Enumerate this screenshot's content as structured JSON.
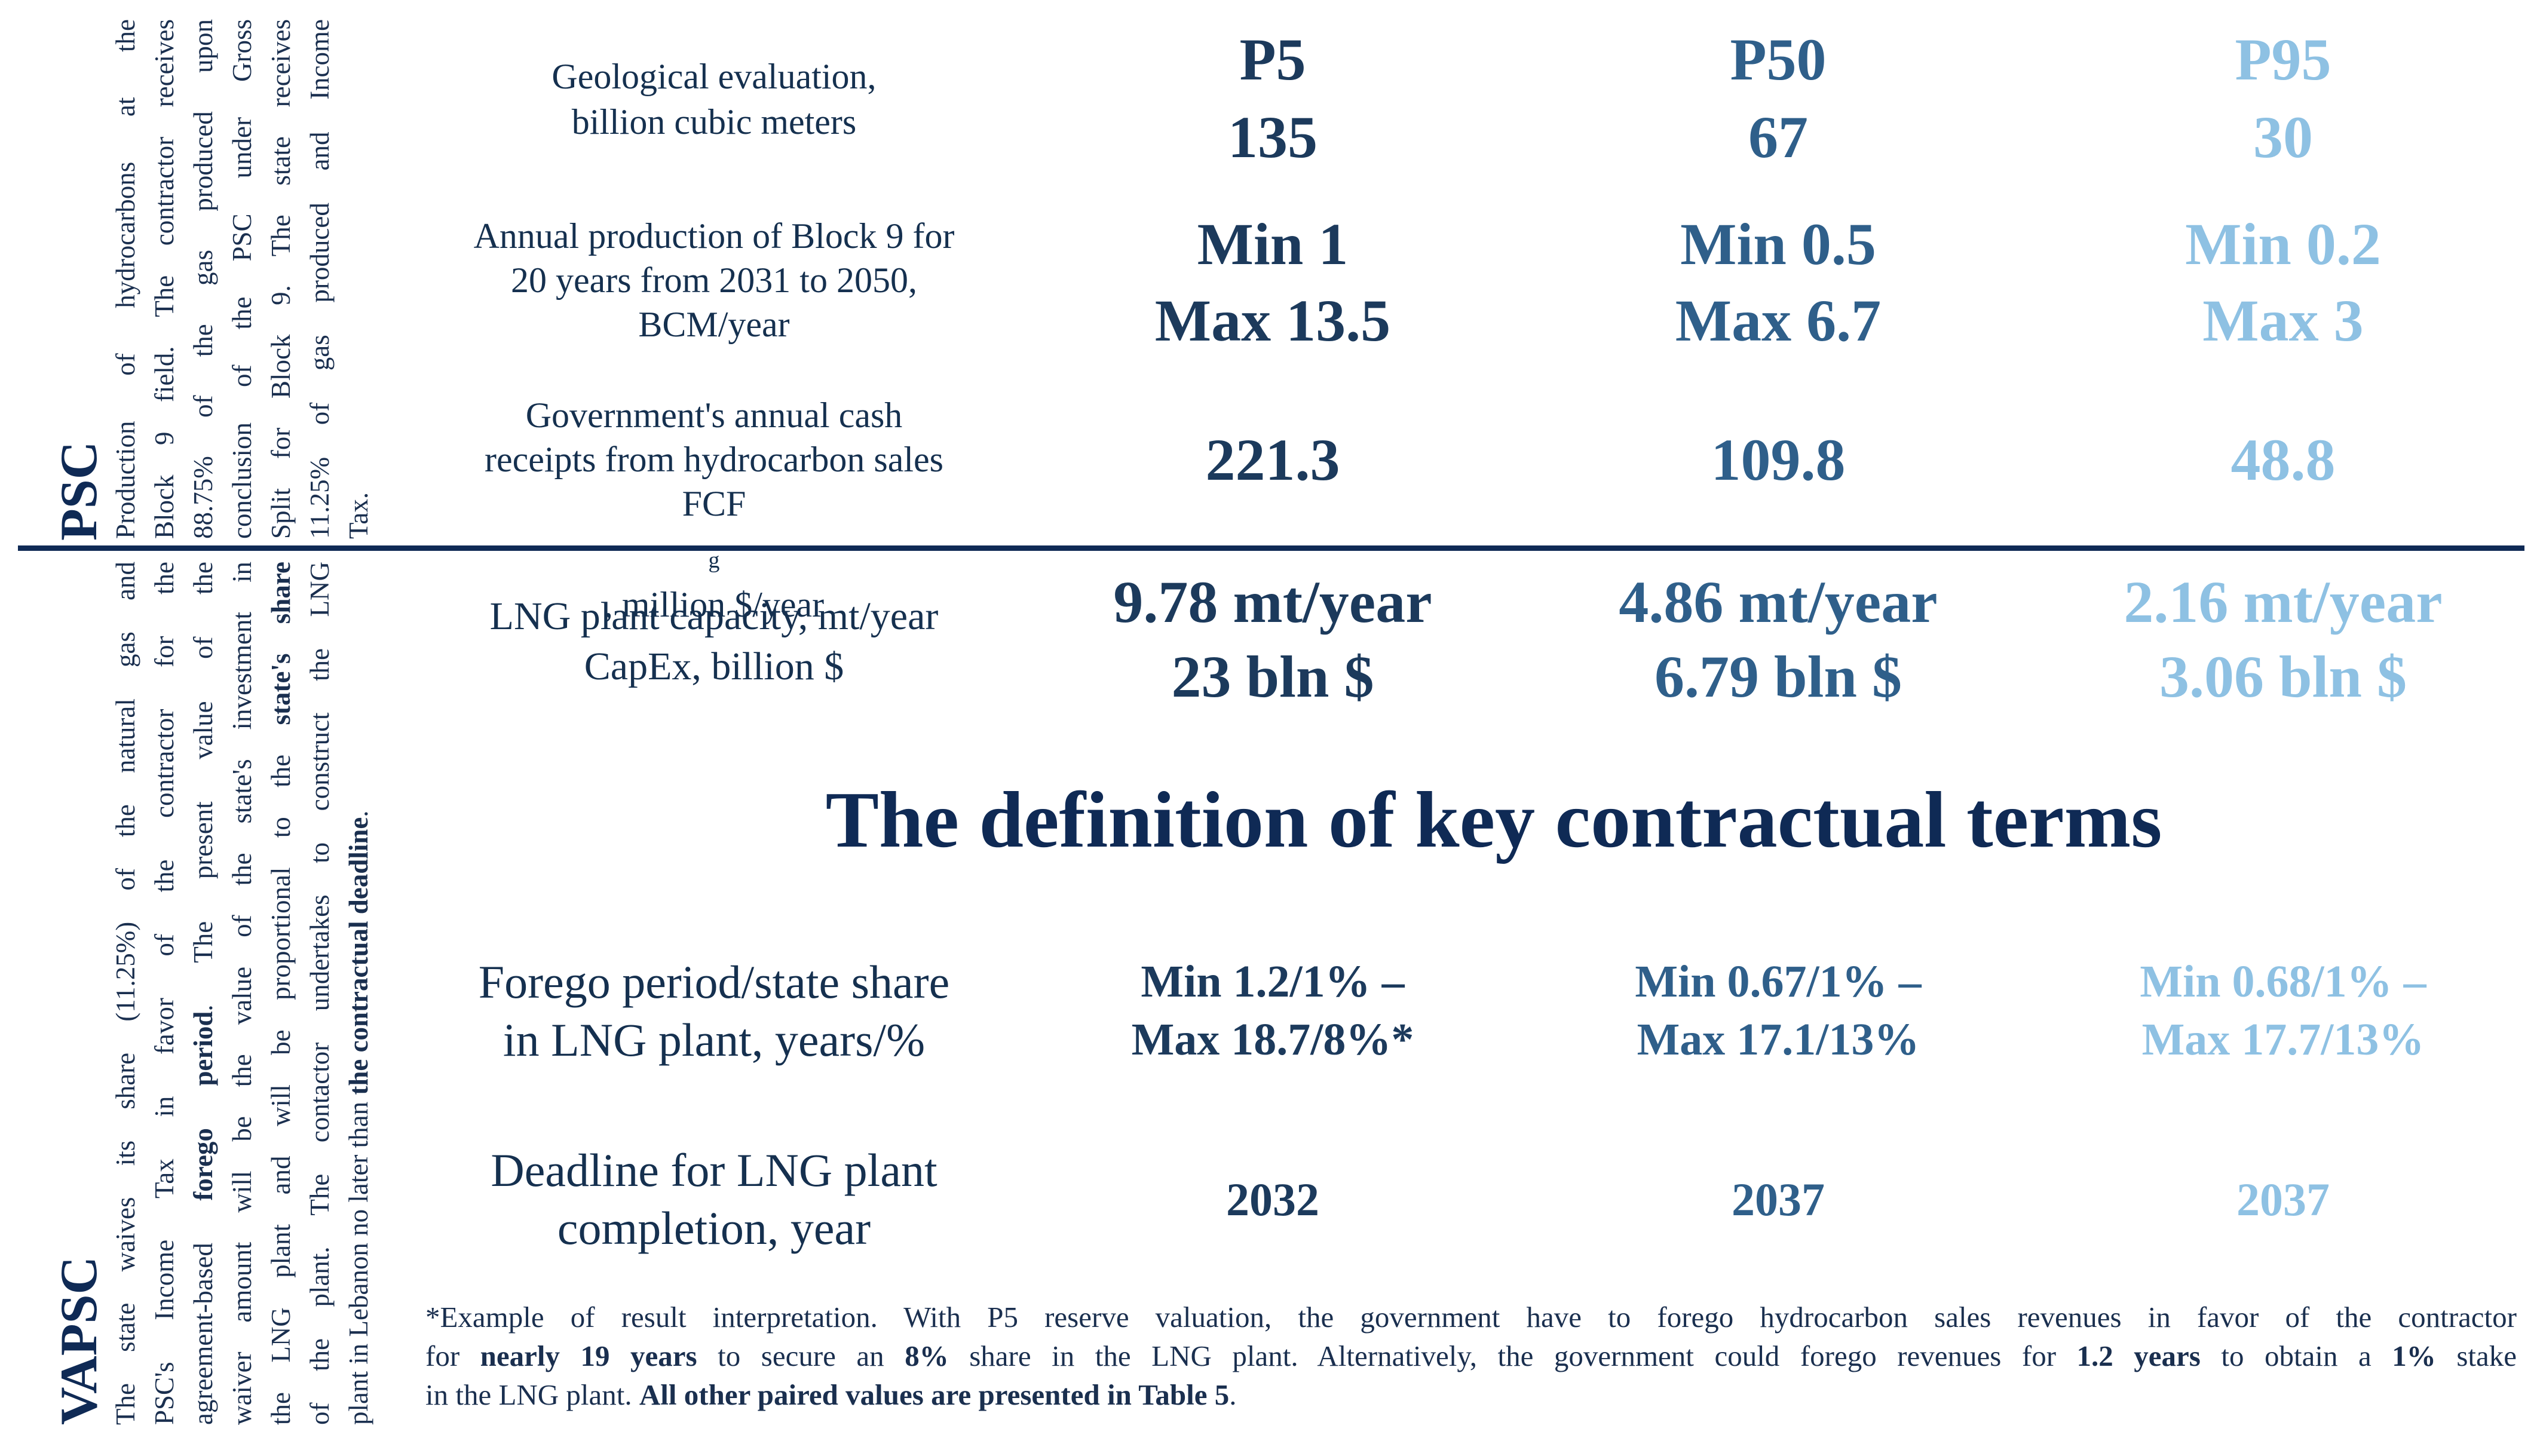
{
  "psc_label": "PSC",
  "vapsc_label": "VAPSC",
  "psc_text_lines": [
    "Production of hydrocarbons at the",
    "Block 9 field. The contractor receives",
    "88.75% of the gas produced upon",
    "conclusion of the PSC under Gross",
    "Split for Block 9. The state receives",
    "11.25% of gas produced and Income",
    "Tax."
  ],
  "vapsc_text_lines": [
    {
      "a": "The state waives its share (11.25%) of the natural gas and",
      "b": "",
      "c": ""
    },
    {
      "a": "PSC's Income Tax in favor of the contractor for the",
      "b": "",
      "c": ""
    },
    {
      "a": "agreement-based ",
      "b": "forego period",
      "c": ". The present value of the"
    },
    {
      "a": "waiver amount will be the value of the state's investment in",
      "b": "",
      "c": ""
    },
    {
      "a": "the LNG plant and will be proportional to the ",
      "b": "state's share",
      "c": ""
    },
    {
      "a": "of the plant. The contactor undertakes to construct the LNG",
      "b": "",
      "c": ""
    },
    {
      "a": "plant in Lebanon no later than ",
      "b": "the contractual deadline",
      "c": "."
    }
  ],
  "columns": [
    {
      "name": "P5",
      "color": "#1c3a5c"
    },
    {
      "name": "P50",
      "color": "#2f5f8a"
    },
    {
      "name": "P95",
      "color": "#8ec1e3"
    }
  ],
  "rows": {
    "geological": {
      "label": [
        "Geological evaluation,",
        "billion cubic meters"
      ],
      "values": [
        "135",
        "67",
        "30"
      ]
    },
    "production": {
      "label": [
        "Annual production of Block 9 for",
        "20 years from 2031 to 2050,",
        "BCM/year"
      ],
      "values": [
        [
          "Min 1",
          "Max 13.5"
        ],
        [
          "Min 0.5",
          "Max 6.7"
        ],
        [
          "Min 0.2",
          "Max 3"
        ]
      ]
    },
    "cash": {
      "label_1": "Government's  annual cash",
      "label_2": "receipts from hydrocarbon sales",
      "label_3a": "FCF",
      "label_3sub": "g",
      "label_3b": ", million $/year",
      "values": [
        "221.3",
        "109.8",
        "48.8"
      ]
    },
    "lng": {
      "label": [
        "LNG plant capacity, mt/year",
        "CapEx, billion $"
      ],
      "values": [
        [
          "9.78 mt/year",
          "23 bln $"
        ],
        [
          "4.86 mt/year",
          "6.79 bln $"
        ],
        [
          "2.16 mt/year",
          "3.06 bln $"
        ]
      ]
    },
    "forego": {
      "label": [
        "Forego period/state share",
        "in LNG plant, years/%"
      ],
      "values": [
        [
          "Min 1.2/1% –",
          "Max 18.7/8%*"
        ],
        [
          "Min 0.67/1% –",
          "Max 17.1/13%"
        ],
        [
          "Min 0.68/1% –",
          "Max 17.7/13%"
        ]
      ]
    },
    "deadline": {
      "label": [
        "Deadline for LNG plant",
        "completion, year"
      ],
      "values": [
        "2032",
        "2037",
        "2037"
      ]
    }
  },
  "section_title": "The definition of key contractual terms",
  "footnote": {
    "l1": "*Example of result interpretation. With P5 reserve valuation, the government have to forego hydrocarbon sales revenues in favor of the contractor",
    "l2a": "for ",
    "l2b": "nearly 19 years",
    "l2c": " to secure an ",
    "l2d": "8%",
    "l2e": " share in the LNG plant. Alternatively, the government could forego revenues for ",
    "l2f": "1.2 years",
    "l2g": " to obtain a ",
    "l2h": "1%",
    "l2i": " stake",
    "l3a": "in the LNG plant. ",
    "l3b": "All other paired values are presented in Table 5",
    "l3c": "."
  }
}
